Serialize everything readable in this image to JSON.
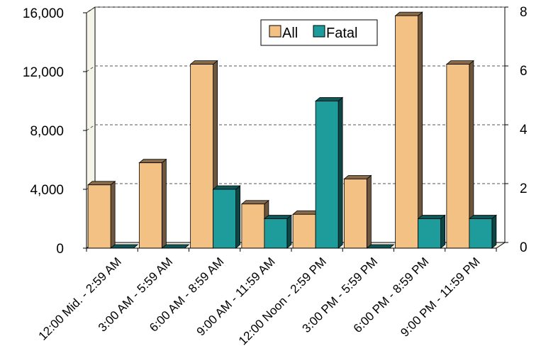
{
  "chart_data": {
    "type": "bar",
    "title": "",
    "xlabel": "",
    "ylabel": "",
    "categories": [
      "12:00 Mid. - 2:59 AM",
      "3:00 AM - 5:59 AM",
      "6:00 AM - 8:59 AM",
      "9:00 AM - 11:59 AM",
      "12:00 Noon - 2:59 PM",
      "3:00 PM - 5:59 PM",
      "6:00 PM - 8:59 PM",
      "9:00 PM - 11:59 PM"
    ],
    "series": [
      {
        "name": "All",
        "axis": "left",
        "color": "#F4C185",
        "values": [
          4300,
          5800,
          12500,
          3000,
          2300,
          4700,
          15800,
          12500
        ]
      },
      {
        "name": "Fatal",
        "axis": "right",
        "color": "#1E9C9C",
        "values": [
          0,
          0,
          2,
          1,
          5,
          0,
          1,
          1
        ]
      }
    ],
    "ylim_left": [
      0,
      16000
    ],
    "ylim_right": [
      0,
      8
    ],
    "y_ticks_left": [
      "0",
      "4,000",
      "8,000",
      "12,000",
      "16,000"
    ],
    "y_ticks_right": [
      "0",
      "2",
      "4",
      "6",
      "8"
    ],
    "grid": true,
    "legend_position": "top-right"
  }
}
